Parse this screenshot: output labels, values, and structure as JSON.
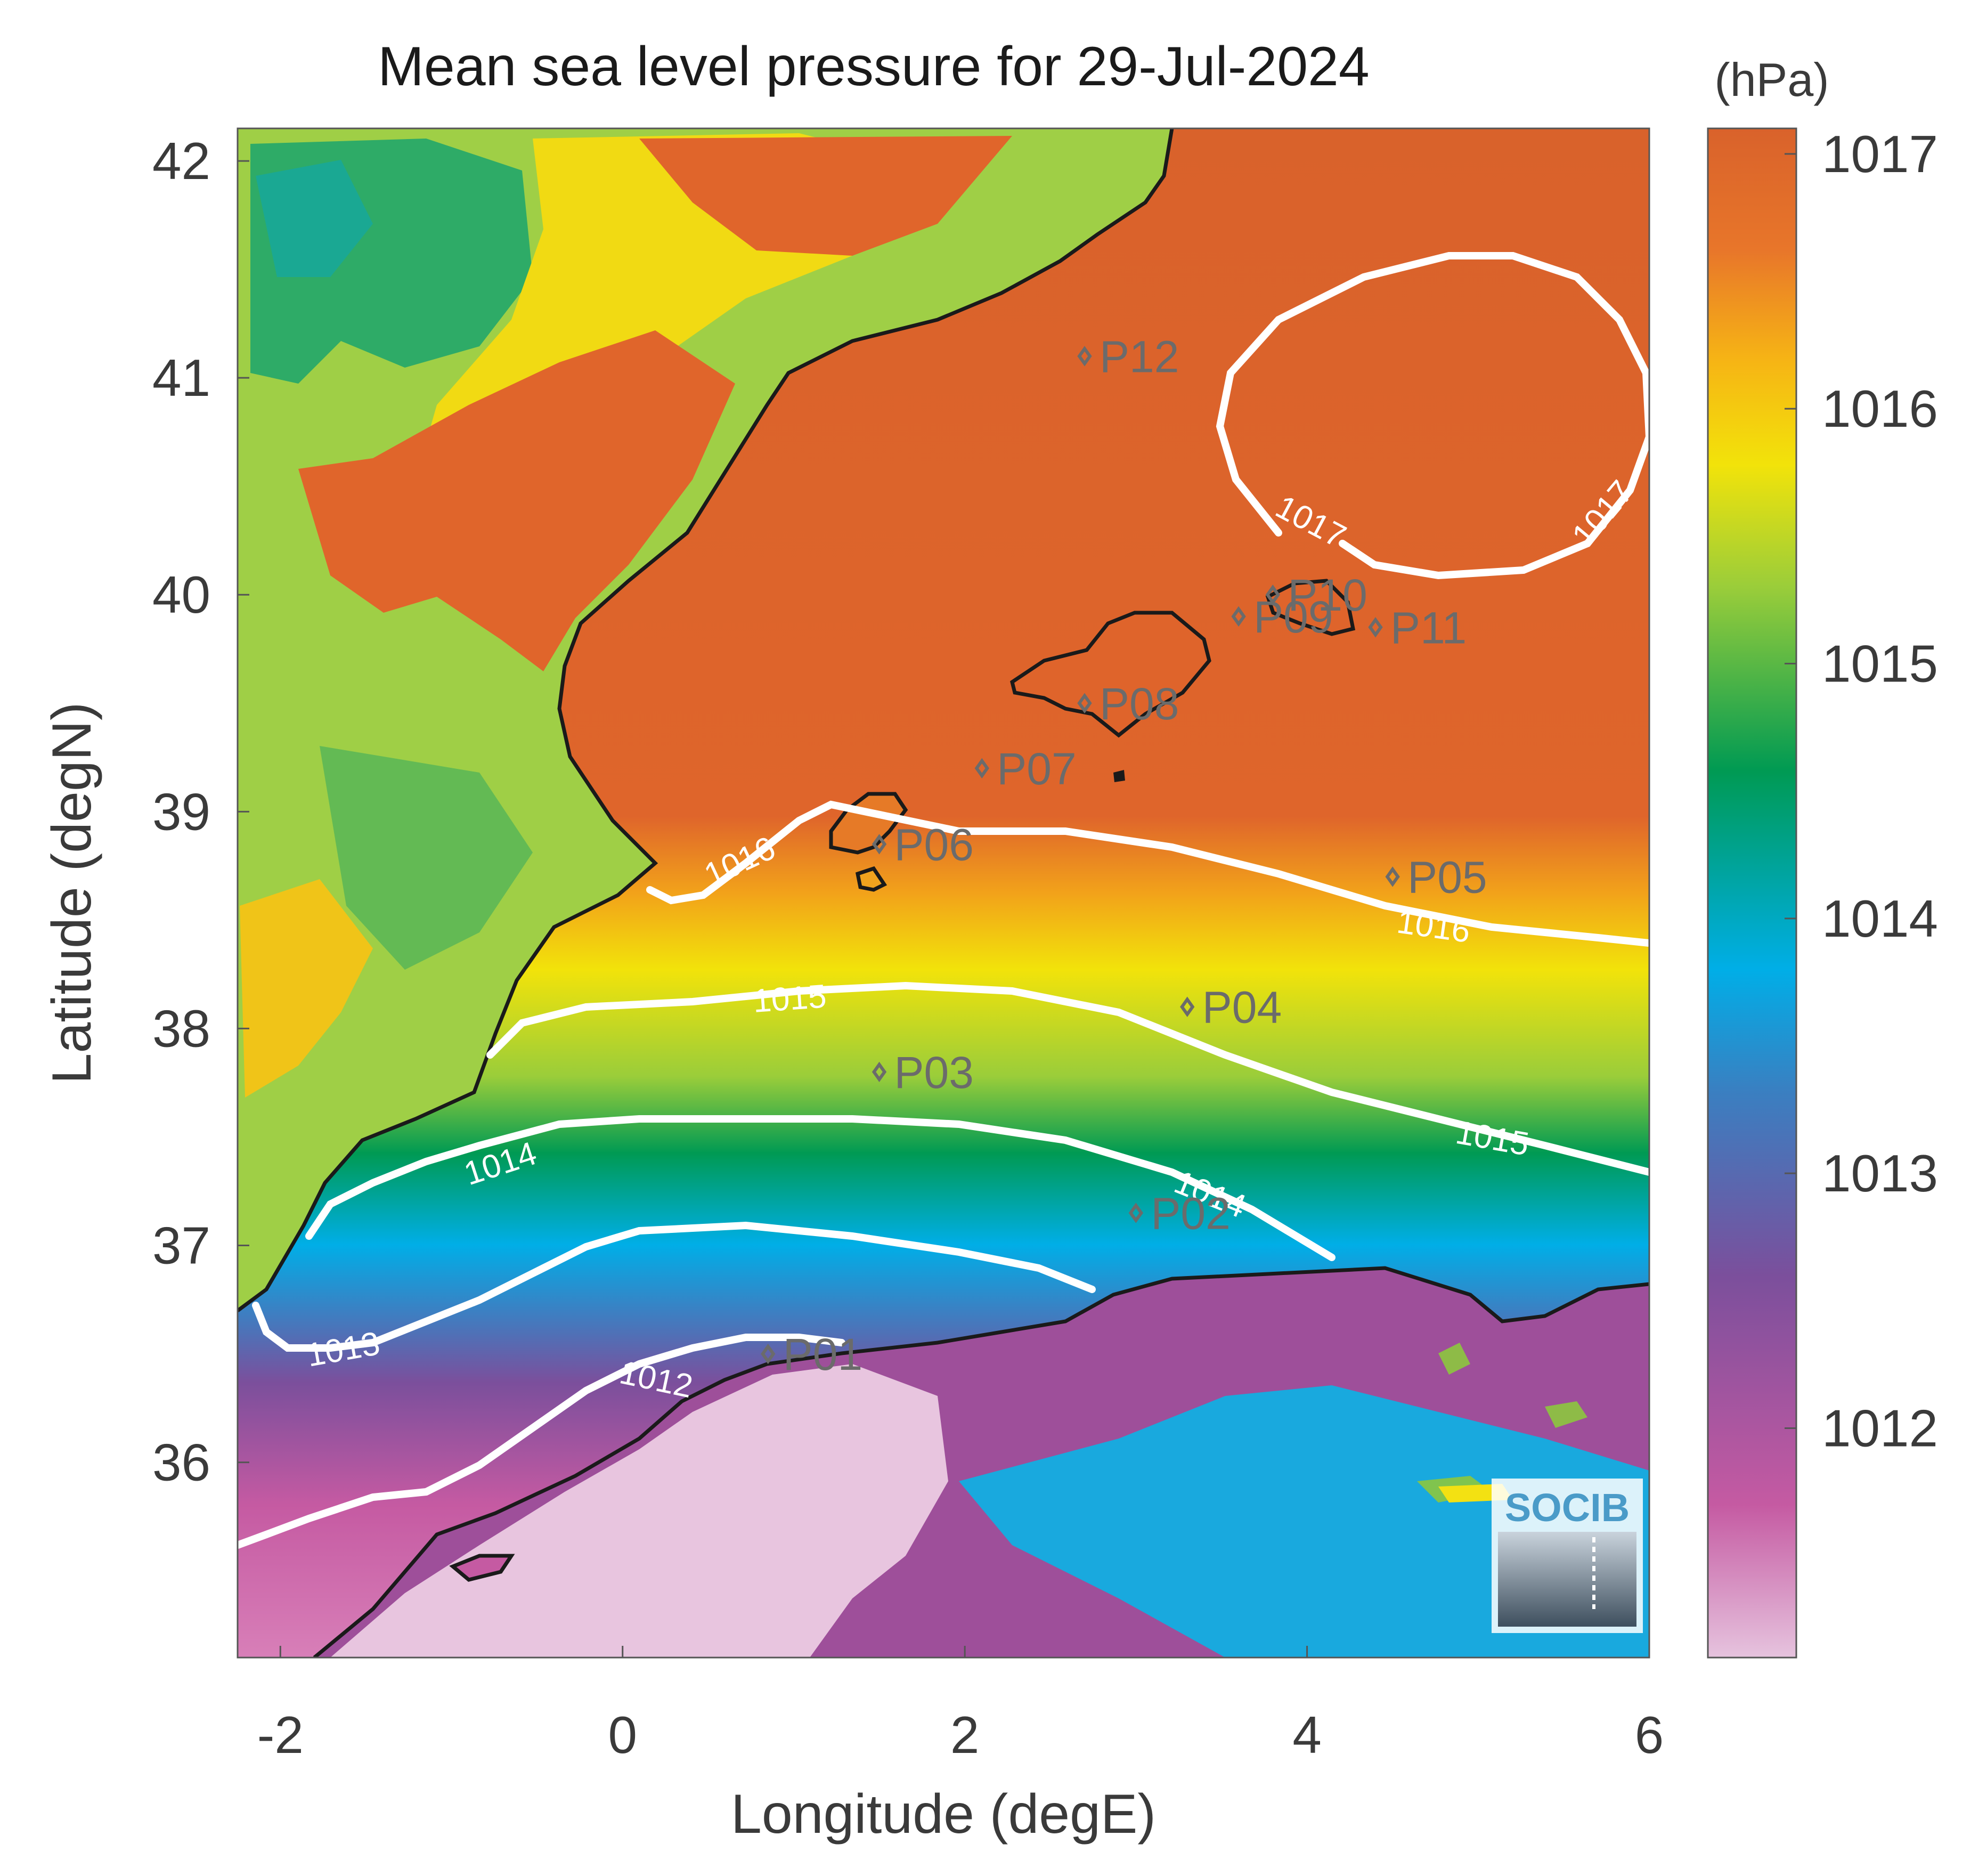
{
  "chart_data": {
    "type": "heatmap",
    "title": "Mean sea level pressure for 29-Jul-2024",
    "xlabel": "Longitude (degE)",
    "ylabel": "Latitude (degN)",
    "xlim": [
      -2.25,
      6.0
    ],
    "ylim": [
      35.1,
      42.15
    ],
    "x_ticks": [
      -2,
      0,
      2,
      4,
      6
    ],
    "y_ticks": [
      36,
      37,
      38,
      39,
      40,
      41,
      42
    ],
    "colorbar": {
      "unit_label": "(hPa)",
      "range": [
        1011.1,
        1017.1
      ],
      "ticks": [
        1012,
        1013,
        1014,
        1015,
        1016,
        1017
      ],
      "colors": [
        "#e6c3de",
        "#c55aa2",
        "#7b4f9c",
        "#00aee7",
        "#009a53",
        "#9acd3a",
        "#f2e30a",
        "#f08a24",
        "#e06a2a",
        "#d9622b"
      ]
    },
    "contours": [
      {
        "level": 1012,
        "labels": [
          "1012"
        ]
      },
      {
        "level": 1013,
        "labels": [
          "1013"
        ]
      },
      {
        "level": 1014,
        "labels": [
          "1014",
          "1014"
        ]
      },
      {
        "level": 1015,
        "labels": [
          "1015",
          "1015"
        ]
      },
      {
        "level": 1016,
        "labels": [
          "1016",
          "1016"
        ]
      },
      {
        "level": 1017,
        "labels": [
          "1017",
          "1017"
        ]
      }
    ],
    "stations": [
      {
        "name": "P01",
        "lon": 0.85,
        "lat": 36.5
      },
      {
        "name": "P02",
        "lon": 3.0,
        "lat": 37.15
      },
      {
        "name": "P03",
        "lon": 1.5,
        "lat": 37.8
      },
      {
        "name": "P04",
        "lon": 3.3,
        "lat": 38.1
      },
      {
        "name": "P05",
        "lon": 4.5,
        "lat": 38.7
      },
      {
        "name": "P06",
        "lon": 1.5,
        "lat": 38.85
      },
      {
        "name": "P07",
        "lon": 2.1,
        "lat": 39.2
      },
      {
        "name": "P08",
        "lon": 2.7,
        "lat": 39.5
      },
      {
        "name": "P09",
        "lon": 3.6,
        "lat": 39.9
      },
      {
        "name": "P10",
        "lon": 3.8,
        "lat": 40.0
      },
      {
        "name": "P11",
        "lon": 4.4,
        "lat": 39.85
      },
      {
        "name": "P12",
        "lon": 2.7,
        "lat": 41.1
      }
    ],
    "grid": false
  },
  "logo": {
    "text": "SOCIB"
  }
}
